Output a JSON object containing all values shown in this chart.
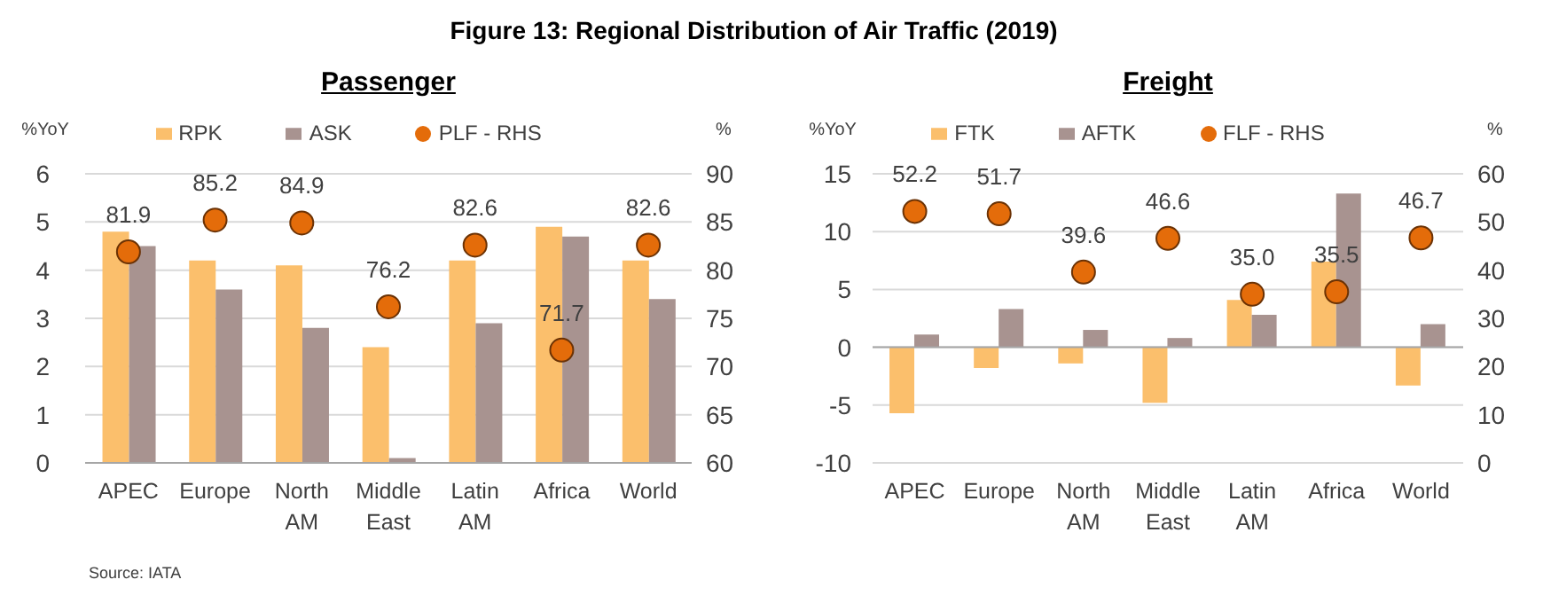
{
  "chart_data": [
    {
      "type": "other",
      "title": "Figure 13: Regional Distribution of Air Traffic (2019)"
    },
    {
      "type": "bar",
      "title": "Passenger",
      "categories": [
        "APEC",
        "Europe",
        "North AM",
        "Middle East",
        "Latin AM",
        "Africa",
        "World"
      ],
      "series": [
        {
          "name": "RPK",
          "color": "#fbbf6c",
          "values": [
            4.8,
            4.2,
            4.1,
            2.4,
            4.2,
            4.9,
            4.2
          ]
        },
        {
          "name": "ASK",
          "color": "#a89390",
          "values": [
            4.5,
            3.6,
            2.8,
            0.1,
            2.9,
            4.7,
            3.4
          ]
        },
        {
          "name": "PLF - RHS",
          "type": "scatter",
          "axis": "y2",
          "marker": "circle",
          "color": "#e46c0a",
          "values": [
            81.9,
            85.2,
            84.9,
            76.2,
            82.6,
            71.7,
            82.6
          ],
          "value_labels": [
            "81.9",
            "85.2",
            "84.9",
            "76.2",
            "82.6",
            "71.7",
            "82.6"
          ]
        }
      ],
      "ylabel": "%YoY",
      "y2label": "%",
      "ylim": [
        0,
        6
      ],
      "yticks": [
        0,
        1,
        2,
        3,
        4,
        5,
        6
      ],
      "y2lim": [
        60,
        90
      ],
      "y2ticks": [
        60,
        65,
        70,
        75,
        80,
        85,
        90
      ],
      "grid": "y",
      "legend": "top",
      "annotations": [
        "Source: IATA"
      ]
    },
    {
      "type": "bar",
      "title": "Freight",
      "categories": [
        "APEC",
        "Europe",
        "North AM",
        "Middle East",
        "Latin AM",
        "Africa",
        "World"
      ],
      "series": [
        {
          "name": "FTK",
          "color": "#fbbf6c",
          "values": [
            -5.7,
            -1.8,
            -1.4,
            -4.8,
            4.1,
            7.4,
            -3.3
          ]
        },
        {
          "name": "AFTK",
          "color": "#a89390",
          "values": [
            1.1,
            3.3,
            1.5,
            0.8,
            2.8,
            13.3,
            2.0
          ]
        },
        {
          "name": "FLF - RHS",
          "type": "scatter",
          "axis": "y2",
          "marker": "circle",
          "color": "#e46c0a",
          "values": [
            52.2,
            51.7,
            39.6,
            46.6,
            35.0,
            35.5,
            46.7
          ],
          "value_labels": [
            "52.2",
            "51.7",
            "39.6",
            "46.6",
            "35.0",
            "35.5",
            "46.7"
          ]
        }
      ],
      "ylabel": "%YoY",
      "y2label": "%",
      "ylim": [
        -10,
        15
      ],
      "yticks": [
        -10,
        -5,
        0,
        5,
        10,
        15
      ],
      "y2lim": [
        0,
        60
      ],
      "y2ticks": [
        0,
        10,
        20,
        30,
        40,
        50,
        60
      ],
      "grid": "y",
      "legend": "top"
    }
  ]
}
